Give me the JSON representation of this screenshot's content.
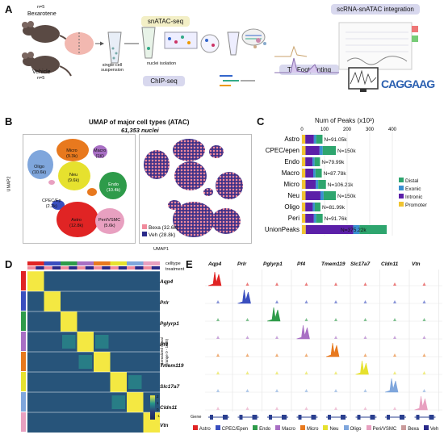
{
  "panels": {
    "a": "A",
    "b": "B",
    "c": "C",
    "d": "D",
    "e": "E"
  },
  "panelA": {
    "n_top": "n=5",
    "bexarotene": "Bexarotene",
    "vehicle": "Vehicle",
    "n_bottom": "n=5",
    "snatac": "snATAC-seq",
    "scrna_integration": "scRNA-snATAC integration",
    "single_cell": "single-cell\nsuspension",
    "nuclei_isolation": "nuclei isolation",
    "chipseq": "ChIP-seq",
    "tf_footprinting": "TF Footprinting",
    "motif": "CAGGAAG"
  },
  "panelB": {
    "title": "UMAP of major cell types (ATAC)",
    "subtitle": "61,353 nuclei",
    "ylabel": "UMAP2",
    "xlabel": "UMAP1",
    "clusters": [
      {
        "name": "Oligo",
        "count": "(10.6k)",
        "color": "#7fa6dc"
      },
      {
        "name": "Micro",
        "count": "(9.3k)",
        "color": "#e8791e"
      },
      {
        "name": "Macro",
        "count": "(1K)",
        "color": "#a86fc4"
      },
      {
        "name": "Neu",
        "count": "(9.6k)",
        "color": "#e6e12e"
      },
      {
        "name": "Endo",
        "count": "(10.4k)",
        "color": "#2e9b4a"
      },
      {
        "name": "CPEC/Ep",
        "count": "(2.2k)",
        "color": "#3a4fbf"
      },
      {
        "name": "Astro",
        "count": "(12.8k)",
        "color": "#e02424"
      },
      {
        "name": "Peri/VSMC",
        "count": "(5.6k)",
        "color": "#e8a0c0"
      }
    ],
    "legend": [
      {
        "label": "Bexa (32.6k)",
        "color": "#f08a9c"
      },
      {
        "label": "Veh (28.8k)",
        "color": "#2a2a8a"
      }
    ]
  },
  "panelC": {
    "title": "Num of Peaks (x10³)",
    "ticks": [
      "0",
      "100",
      "200",
      "300",
      "400"
    ],
    "legend": [
      {
        "label": "Distal",
        "color": "#2ea56e"
      },
      {
        "label": "Exonic",
        "color": "#3a8fd0"
      },
      {
        "label": "Intronic",
        "color": "#5b1fa8"
      },
      {
        "label": "Promoter",
        "color": "#f0c431"
      }
    ]
  },
  "chart_data": {
    "type": "bar",
    "title": "Num of Peaks (x10³)",
    "orientation": "horizontal stacked",
    "categories": [
      "Astro",
      "CPEC/epen",
      "Endo",
      "Macro",
      "Micro",
      "Neu",
      "Oligo",
      "Peri",
      "UnionPeaks"
    ],
    "totals": [
      91.05,
      150,
      79.99,
      87.78,
      106.21,
      150,
      81.99,
      91.76,
      375.22
    ],
    "total_labels": [
      "N=91.05k",
      "N=150k",
      "N=79.99k",
      "N=87.78k",
      "N=106.21k",
      "N=150k",
      "N=81.99k",
      "N=91.76k",
      "N=375.22k"
    ],
    "series": [
      {
        "name": "Promoter",
        "values": [
          15,
          16,
          15,
          15,
          16,
          16,
          15,
          15,
          17
        ]
      },
      {
        "name": "Intronic",
        "values": [
          38,
          62,
          32,
          35,
          45,
          66,
          33,
          38,
          210
        ]
      },
      {
        "name": "Exonic",
        "values": [
          10,
          14,
          9,
          10,
          11,
          14,
          9,
          10,
          28
        ]
      },
      {
        "name": "Distal",
        "values": [
          28.05,
          58,
          23.99,
          27.78,
          34.21,
          54,
          24.99,
          28.76,
          120.22
        ]
      }
    ],
    "xlim": [
      0,
      400
    ]
  },
  "panelD": {
    "row_labels": [
      "Aqp4",
      "Prlr",
      "Pglyrp1",
      "Pf4",
      "Tmem119",
      "Slc17a7",
      "Cldn11",
      "Vtn"
    ],
    "legend_title": "celltype\ntreatment",
    "scale": [
      "2",
      "1",
      "0",
      "-1"
    ]
  },
  "panelE": {
    "genes": [
      "Aqp4",
      "Prlr",
      "Pglyrp1",
      "Pf4",
      "Tmem119",
      "Slc17a7",
      "Cldn11",
      "Vtn"
    ],
    "ylabel": "Normalized signal\n(range 0 - 1600)",
    "gene_row": "Gene",
    "legend": [
      {
        "label": "Astro",
        "color": "#e02424"
      },
      {
        "label": "CPEC/Epen",
        "color": "#3a4fbf"
      },
      {
        "label": "Endo",
        "color": "#2e9b4a"
      },
      {
        "label": "Macro",
        "color": "#a86fc4"
      },
      {
        "label": "Micro",
        "color": "#e8791e"
      },
      {
        "label": "Neu",
        "color": "#e6e12e"
      },
      {
        "label": "Oligo",
        "color": "#7fa6dc"
      },
      {
        "label": "Peri/VSMC",
        "color": "#e8a0c0"
      },
      {
        "label": "Bexa",
        "color": "#c99a9a"
      },
      {
        "label": "Veh",
        "color": "#2a2a8a"
      }
    ]
  }
}
